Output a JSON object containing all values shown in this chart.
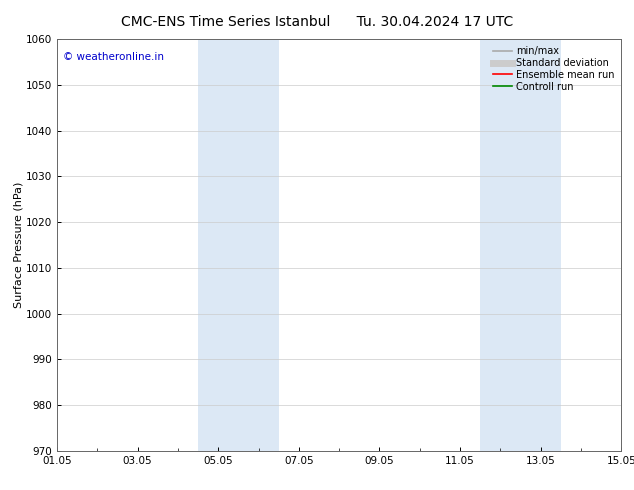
{
  "title_left": "CMC-ENS Time Series Istanbul",
  "title_right": "Tu. 30.04.2024 17 UTC",
  "ylabel": "Surface Pressure (hPa)",
  "ylim": [
    970,
    1060
  ],
  "yticks": [
    970,
    980,
    990,
    1000,
    1010,
    1020,
    1030,
    1040,
    1050,
    1060
  ],
  "xtick_labels": [
    "01.05",
    "03.05",
    "05.05",
    "07.05",
    "09.05",
    "11.05",
    "13.05",
    "15.05"
  ],
  "xtick_positions": [
    0,
    2,
    4,
    6,
    8,
    10,
    12,
    14
  ],
  "xlim": [
    0,
    14
  ],
  "background_color": "#ffffff",
  "plot_bg_color": "#ffffff",
  "shaded_bands": [
    {
      "xmin": 3.5,
      "xmax": 5.5,
      "color": "#dce8f5"
    },
    {
      "xmin": 10.5,
      "xmax": 12.5,
      "color": "#dce8f5"
    }
  ],
  "watermark_text": "© weatheronline.in",
  "watermark_color": "#0000cc",
  "legend_entries": [
    {
      "label": "min/max",
      "color": "#aaaaaa",
      "lw": 1.2,
      "ls": "-"
    },
    {
      "label": "Standard deviation",
      "color": "#cccccc",
      "lw": 5,
      "ls": "-"
    },
    {
      "label": "Ensemble mean run",
      "color": "#ff0000",
      "lw": 1.2,
      "ls": "-"
    },
    {
      "label": "Controll run",
      "color": "#008800",
      "lw": 1.2,
      "ls": "-"
    }
  ],
  "title_fontsize": 10,
  "ylabel_fontsize": 8,
  "tick_fontsize": 7.5,
  "legend_fontsize": 7,
  "watermark_fontsize": 7.5,
  "grid_color": "#cccccc",
  "grid_lw": 0.5,
  "spine_color": "#666666",
  "spine_lw": 0.7
}
